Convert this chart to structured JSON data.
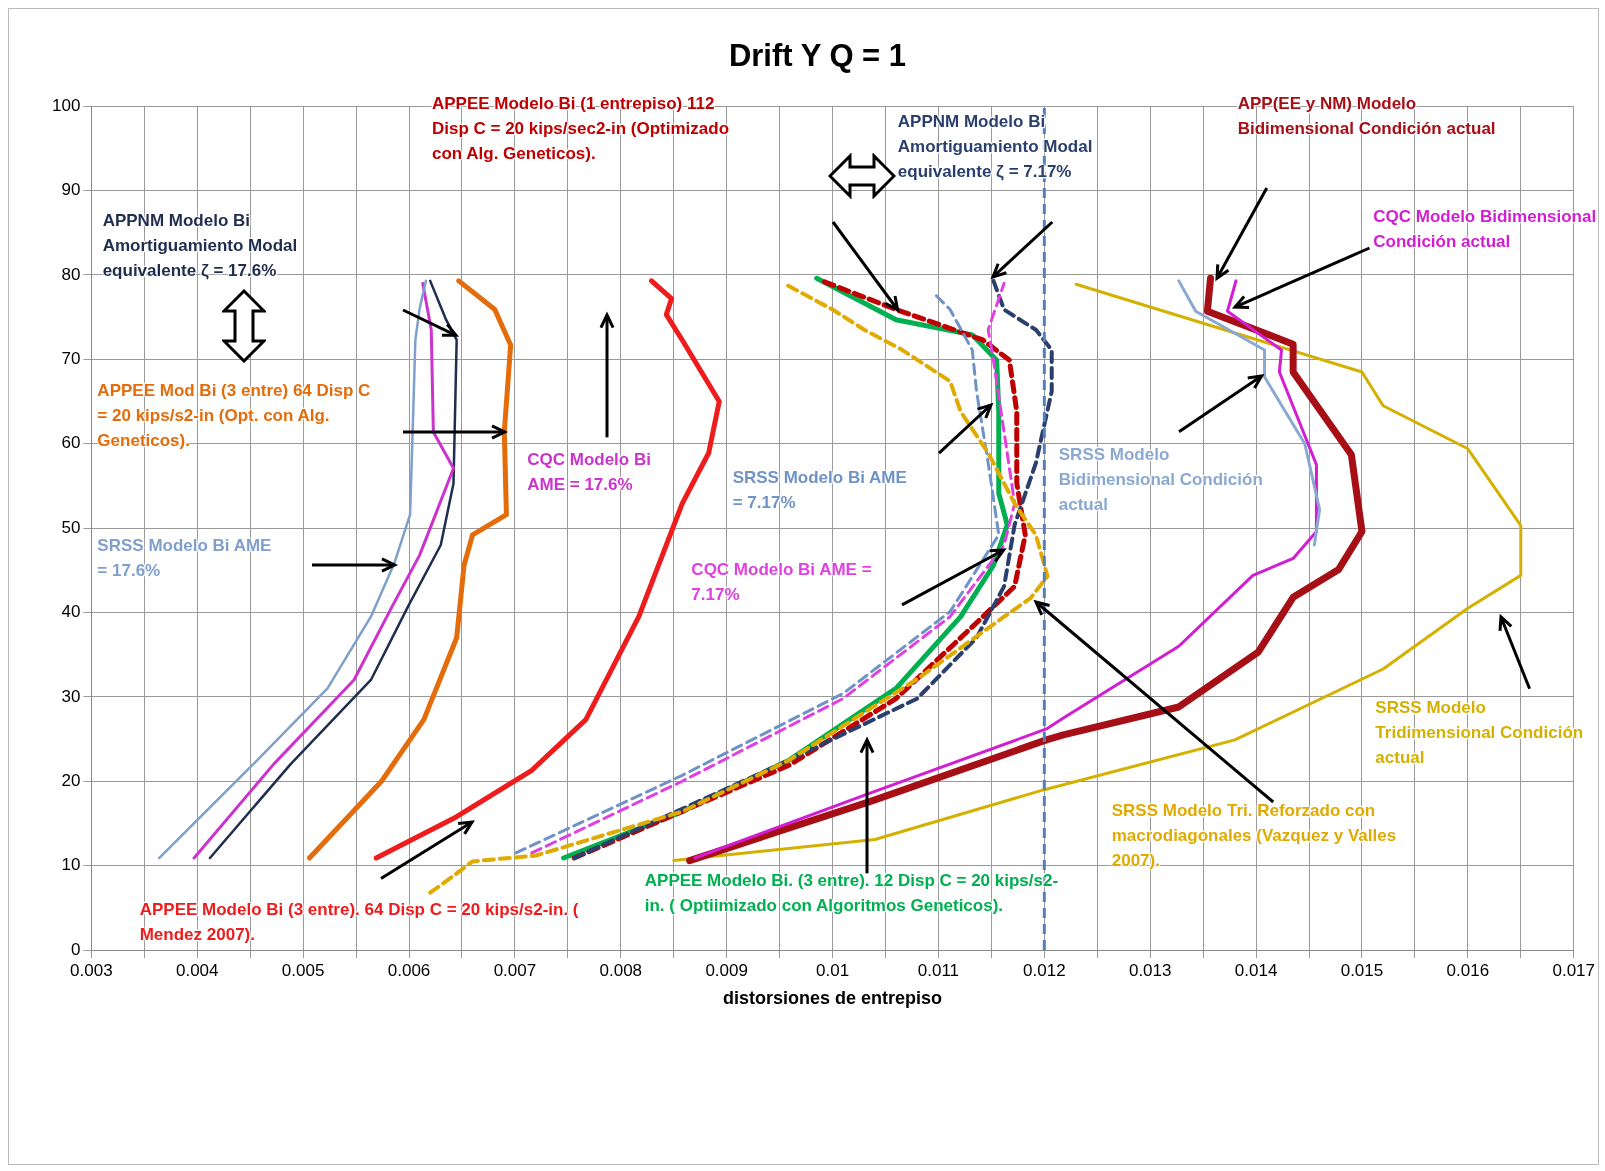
{
  "chart_data": {
    "type": "line",
    "title": "Drift Y Q = 1",
    "xlabel": "distorsiones de entrepiso",
    "xlim": [
      0.003,
      0.017
    ],
    "xticks": [
      0.003,
      {
        "value": 0.0035,
        "label": null
      },
      0.004,
      {
        "value": 0.0045,
        "label": null
      },
      0.005,
      {
        "value": 0.0055,
        "label": null
      },
      0.006,
      {
        "value": 0.0065,
        "label": null
      },
      0.007,
      {
        "value": 0.0075,
        "label": null
      },
      0.008,
      {
        "value": 0.0085,
        "label": null
      },
      0.009,
      {
        "value": 0.0095,
        "label": null
      },
      0.01,
      {
        "value": 0.0105,
        "label": null
      },
      0.011,
      {
        "value": 0.0115,
        "label": null
      },
      0.012,
      {
        "value": 0.0125,
        "label": null
      },
      0.013,
      {
        "value": 0.0135,
        "label": null
      },
      0.014,
      {
        "value": 0.0145,
        "label": null
      },
      0.015,
      {
        "value": 0.0155,
        "label": null
      },
      0.016,
      {
        "value": 0.0165,
        "label": null
      },
      0.017
    ],
    "ylim": [
      0,
      100
    ],
    "yticks": [
      0,
      10,
      20,
      30,
      40,
      50,
      60,
      70,
      80,
      90,
      100
    ],
    "grid": true,
    "legend": false,
    "marker": "none",
    "ref_lines": [
      {
        "axis": "x",
        "value": 0.012,
        "color": "#4f81bd",
        "line_style": "dashed"
      }
    ],
    "series": [
      {
        "name": "SRSS Modelo Bi AME = 17.6%",
        "color": "#7f9fcc",
        "line_style": "solid",
        "x": [
          0.00364,
          0.00452,
          0.00523,
          0.00564,
          0.00586,
          0.00601,
          0.00604,
          0.00606,
          0.0061,
          0.00616
        ],
        "values": [
          10.9,
          21.9,
          31,
          39.5,
          45.8,
          51.6,
          63.8,
          72.3,
          76,
          79.3
        ]
      },
      {
        "name": "CQC Modelo Bi AME = 17.6%",
        "color": "#cc33cc",
        "line_style": "solid",
        "x": [
          0.00397,
          0.00472,
          0.00548,
          0.00584,
          0.0061,
          0.00625,
          0.00642,
          0.00623,
          0.00621,
          0.00613
        ],
        "values": [
          10.9,
          22,
          32,
          40.7,
          46.8,
          51.6,
          57.1,
          61.4,
          73.5,
          79
        ]
      },
      {
        "name": "APPNM Modelo Bi Amortiguamiento Modal equivalente ζ = 17.6%",
        "color": "#1f2d4f",
        "line_style": "solid",
        "x": [
          0.00412,
          0.00488,
          0.00564,
          0.00599,
          0.0063,
          0.00642,
          0.00645,
          0.00635,
          0.0062
        ],
        "values": [
          10.9,
          22,
          32,
          40.7,
          48,
          55.3,
          72.3,
          74.7,
          79.3
        ]
      },
      {
        "name": "APPEE Mod Bi (3 entre) 64 Disp C = 20 kips/s2-in (Opt. con Alg. Geneticos).",
        "color": "#e46c0a",
        "line_style": "solid",
        "x": [
          0.00506,
          0.00574,
          0.00614,
          0.00645,
          0.00652,
          0.0066,
          0.00692,
          0.0069,
          0.00696,
          0.00681,
          0.00647
        ],
        "values": [
          10.9,
          20,
          27.3,
          37,
          45.6,
          49.2,
          51.6,
          61.4,
          71.7,
          75.9,
          79.3
        ]
      },
      {
        "name": "APPEE Modelo Bi (3 entre). 64 Disp C = 20 kips/s2-in. ( Mendez 2007).",
        "color": "#ee1c1c",
        "line_style": "solid",
        "x": [
          0.00569,
          0.00645,
          0.00716,
          0.00767,
          0.00817,
          0.00858,
          0.00883,
          0.00893,
          0.00858,
          0.00843,
          0.00848,
          0.00829
        ],
        "values": [
          10.9,
          15.8,
          21.3,
          27.3,
          39.5,
          52.9,
          58.9,
          65,
          72.3,
          75.3,
          77.2,
          79.3
        ]
      },
      {
        "name": "APPEE Modelo Bi (1 entrepiso) 112 Disp C = 20 kips/sec2-in (Optimizado con Alg. Geneticos).",
        "color": "#c00000",
        "line_style": "dashed",
        "x": [
          0.00756,
          0.00959,
          0.0106,
          0.01132,
          0.01172,
          0.01182,
          0.01174,
          0.01174,
          0.01167,
          0.01142,
          0.0106,
          0.0099
        ],
        "values": [
          10.9,
          21.9,
          29.8,
          38.3,
          43.1,
          49.2,
          55.3,
          63.8,
          69.9,
          72.3,
          75.9,
          79.3
        ]
      },
      {
        "name": "APPNM Modelo Bi Amortiguamiento Modal equivalente ζ = 7.17%",
        "color": "#2a3f6e",
        "line_style": "dashed",
        "x": [
          0.00756,
          0.00959,
          0.0108,
          0.01136,
          0.01162,
          0.01172,
          0.01192,
          0.01207,
          0.01207,
          0.01192,
          0.01162,
          0.01152
        ],
        "values": [
          10.9,
          22.5,
          29.8,
          37,
          43.1,
          50.4,
          57.7,
          66.2,
          71.1,
          73.5,
          75.9,
          79.3
        ]
      },
      {
        "name": "SRSS Modelo Bi AME = 7.17%",
        "color": "#6f93c6",
        "line_style": "dashed",
        "x": [
          0.00701,
          0.00858,
          0.0101,
          0.01111,
          0.01157,
          0.01147,
          0.01136,
          0.01132,
          0.01111,
          0.01096
        ],
        "values": [
          11.5,
          20.7,
          30.4,
          40.1,
          49.2,
          57.7,
          66.2,
          71.1,
          75.9,
          77.8
        ]
      },
      {
        "name": "CQC Modelo Bi AME = 7.17%",
        "color": "#e040e0",
        "line_style": "dashed",
        "x": [
          0.00716,
          0.00858,
          0.0101,
          0.01111,
          0.01162,
          0.01172,
          0.01162,
          0.01152,
          0.01147,
          0.01162
        ],
        "values": [
          11.5,
          20,
          29.8,
          39.5,
          48,
          52.9,
          61.4,
          69.9,
          73.5,
          79
        ]
      },
      {
        "name": "APPEE Modelo Bi. (3 entre). 12 Disp C = 20 kips/s2-in. ( Optiimizado con Algoritmos Geneticos).",
        "color": "#00b050",
        "line_style": "solid",
        "x": [
          0.00746,
          0.00858,
          0.00959,
          0.0106,
          0.01121,
          0.01152,
          0.01165,
          0.01157,
          0.01157,
          0.01155,
          0.01132,
          0.0106,
          0.00985
        ],
        "values": [
          10.9,
          16.4,
          22.5,
          31,
          39.5,
          45.6,
          50.4,
          54.1,
          63.8,
          69.9,
          72.9,
          74.7,
          79.6
        ]
      },
      {
        "name": "SRSS Modelo Tri. Reforzado con macrodiagonales (Vazquez y Valles 2007).",
        "color": "#e0aa00",
        "line_style": "dashed",
        "x": [
          0.0062,
          0.0064,
          0.0066,
          0.0072,
          0.00858,
          0.00959,
          0.01081,
          0.01162,
          0.01187,
          0.01203,
          0.01192,
          0.01172,
          0.01147,
          0.01121,
          0.01111,
          0.01066,
          0.0103,
          0.01,
          0.00954
        ],
        "values": [
          6.8,
          8.6,
          10.5,
          11.2,
          16.4,
          22.5,
          32.2,
          39.5,
          41.7,
          44.3,
          49.2,
          52.9,
          58.9,
          63.8,
          67.4,
          71.1,
          73.5,
          75.9,
          79
        ]
      },
      {
        "name": "SRSS Modelo Bidimensional Condición actual",
        "color": "#8aa8d2",
        "line_style": "solid",
        "x": [
          0.01455,
          0.0146,
          0.01446,
          0.01408,
          0.01408,
          0.01343,
          0.01327
        ],
        "values": [
          48,
          52.2,
          60,
          67.9,
          71.1,
          75.7,
          79.3
        ]
      },
      {
        "name": "CQC Modelo Bidimensional Condición actual",
        "color": "#d21ed2",
        "line_style": "solid",
        "x": [
          0.0087,
          0.01038,
          0.01202,
          0.01218,
          0.01327,
          0.01397,
          0.01435,
          0.01457,
          0.01457,
          0.01422,
          0.01424,
          0.01373,
          0.01381
        ],
        "values": [
          10.9,
          18.7,
          26.2,
          27.5,
          36,
          44.4,
          46.4,
          49.6,
          57.5,
          68.5,
          71.1,
          75.7,
          79.3
        ]
      },
      {
        "name": "APP(EE y NM) Modelo Bidimensional Condición actual",
        "color": "#a50f15",
        "line_style": "solid",
        "x": [
          0.00865,
          0.01038,
          0.01202,
          0.01218,
          0.01327,
          0.01402,
          0.01435,
          0.01478,
          0.015,
          0.0149,
          0.01435,
          0.01435,
          0.01354,
          0.01357
        ],
        "values": [
          10.6,
          17.7,
          24.9,
          25.5,
          28.8,
          35.3,
          41.8,
          45.1,
          49.6,
          58.7,
          68.5,
          71.8,
          75.7,
          79.6
        ]
      },
      {
        "name": "SRSS Modelo Tridimensional Condición actual",
        "color": "#d4b000",
        "line_style": "solid",
        "x": [
          0.0085,
          0.0104,
          0.012,
          0.0138,
          0.0152,
          0.016,
          0.0165,
          0.0165,
          0.016,
          0.0152,
          0.015,
          0.0123
        ],
        "values": [
          10.6,
          13.1,
          19,
          24.9,
          33.3,
          40.5,
          44.4,
          50.3,
          59.4,
          64.5,
          68.5,
          78.9
        ]
      }
    ]
  }
}
